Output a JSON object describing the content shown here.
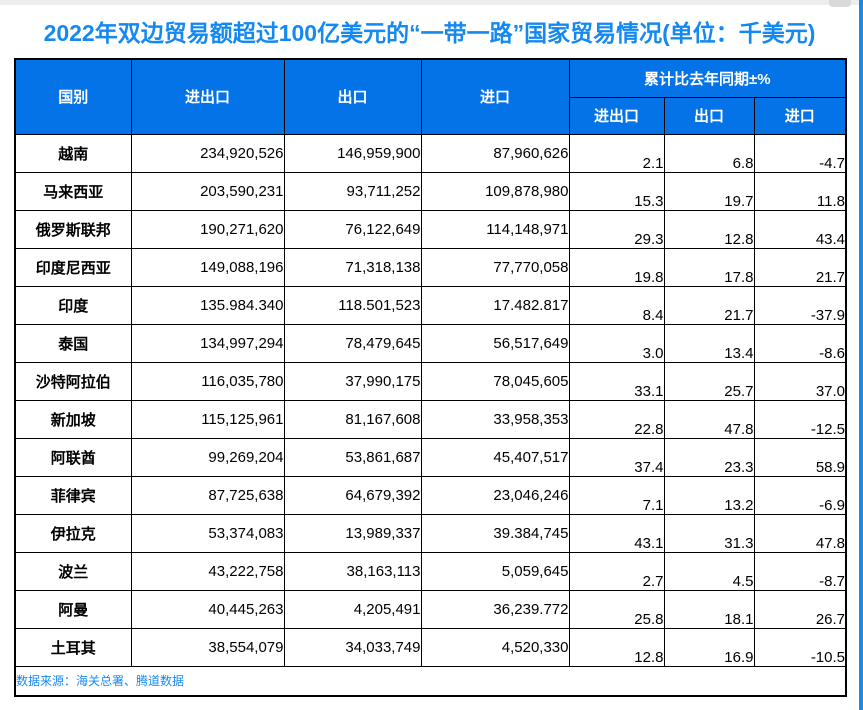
{
  "title": "2022年双边贸易额超过100亿美元的“一带一路”国家贸易情况(单位：千美元)",
  "source_note": "数据来源：海关总署、腾道数据",
  "colors": {
    "header_bg": "#0473e8",
    "title_text": "#1589f2",
    "source_text": "#1589f2",
    "right_edge_accent": "#1e88e5",
    "grid_border": "#000000"
  },
  "table": {
    "header": {
      "country": "国别",
      "total": "进出口",
      "export": "出口",
      "import": "进口",
      "yoy_group": "累计比去年同期±%",
      "yoy_total": "进出口",
      "yoy_export": "出口",
      "yoy_import": "进口"
    }
  },
  "chart_data": {
    "type": "table",
    "title": "2022年双边贸易额超过100亿美元的“一带一路”国家贸易情况(单位：千美元)",
    "columns": [
      "国别",
      "进出口",
      "出口",
      "进口",
      "累计比去年同期±% 进出口",
      "累计比去年同期±% 出口",
      "累计比去年同期±% 进口"
    ],
    "rows": [
      [
        "越南",
        "234,920,526",
        "146,959,900",
        "87,960,626",
        "2.1",
        "6.8",
        "-4.7"
      ],
      [
        "马来西亚",
        "203,590,231",
        "93,711,252",
        "109,878,980",
        "15.3",
        "19.7",
        "11.8"
      ],
      [
        "俄罗斯联邦",
        "190,271,620",
        "76,122,649",
        "114,148,971",
        "29.3",
        "12.8",
        "43.4"
      ],
      [
        "印度尼西亚",
        "149,088,196",
        "71,318,138",
        "77,770,058",
        "19.8",
        "17.8",
        "21.7"
      ],
      [
        "印度",
        "135.984.340",
        "118.501,523",
        "17.482.817",
        "8.4",
        "21.7",
        "-37.9"
      ],
      [
        "泰国",
        "134,997,294",
        "78,479,645",
        "56,517,649",
        "3.0",
        "13.4",
        "-8.6"
      ],
      [
        "沙特阿拉伯",
        "116,035,780",
        "37,990,175",
        "78,045,605",
        "33.1",
        "25.7",
        "37.0"
      ],
      [
        "新加坡",
        "115,125,961",
        "81,167,608",
        "33,958,353",
        "22.8",
        "47.8",
        "-12.5"
      ],
      [
        "阿联酋",
        "99,269,204",
        "53,861,687",
        "45,407,517",
        "37.4",
        "23.3",
        "58.9"
      ],
      [
        "菲律宾",
        "87,725,638",
        "64,679,392",
        "23,046,246",
        "7.1",
        "13.2",
        "-6.9"
      ],
      [
        "伊拉克",
        "53,374,083",
        "13,989,337",
        "39.384,745",
        "43.1",
        "31.3",
        "47.8"
      ],
      [
        "波兰",
        "43,222,758",
        "38,163,113",
        "5,059,645",
        "2.7",
        "4.5",
        "-8.7"
      ],
      [
        "阿曼",
        "40,445,263",
        "4,205,491",
        "36,239.772",
        "25.8",
        "18.1",
        "26.7"
      ],
      [
        "土耳其",
        "38,554,079",
        "34,033,749",
        "4,520,330",
        "12.8",
        "16.9",
        "-10.5"
      ]
    ],
    "source": "数据来源：海关总署、腾道数据"
  }
}
